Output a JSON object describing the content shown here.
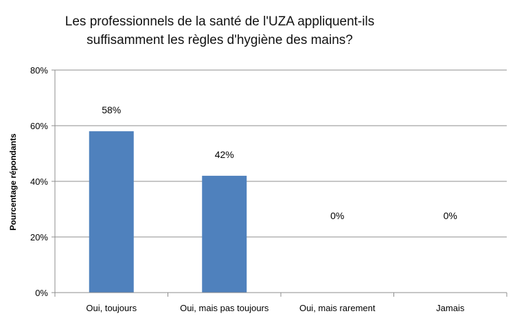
{
  "chart_data": {
    "type": "bar",
    "title_line1": "Les professionnels de la santé de l'UZA appliquent-ils",
    "title_line2": "suffisamment les règles d'hygiène des mains?",
    "ylabel": "Pourcentage répondants",
    "xlabel": "",
    "categories": [
      "Oui, toujours",
      "Oui, mais pas toujours",
      "Oui, mais rarement",
      "Jamais"
    ],
    "values": [
      58,
      42,
      0,
      0
    ],
    "data_labels": [
      "58%",
      "42%",
      "0%",
      "0%"
    ],
    "yticks": [
      0,
      20,
      40,
      60,
      80
    ],
    "ytick_labels": [
      "0%",
      "20%",
      "40%",
      "60%",
      "80%"
    ],
    "ylim": [
      0,
      80
    ],
    "grid": true,
    "bar_color": "#4f81bd"
  }
}
